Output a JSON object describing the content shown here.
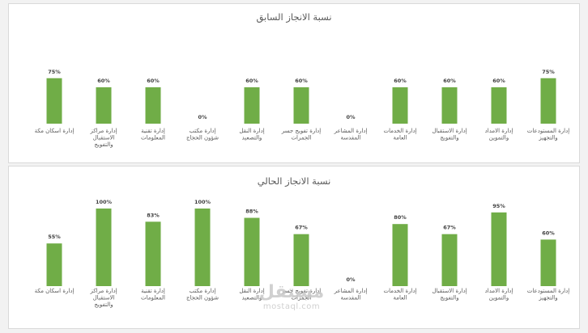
{
  "chart_data": [
    {
      "type": "bar",
      "title": "نسبة الانجاز السابق",
      "categories": [
        [
          "إدارة المستودعات",
          "والتجهيز"
        ],
        [
          "إدارة الامداد",
          "والتموين"
        ],
        [
          "إدارة الاستقبال",
          "والتفويج"
        ],
        [
          "إدارة الخدمات",
          "العامة"
        ],
        [
          "إدارة المشاعر",
          "المقدسة"
        ],
        [
          "إدارة تفويج جسر",
          "الجمرات"
        ],
        [
          "إدارة النقل",
          "والتصعيد"
        ],
        [
          "إدارة مكتب",
          "شؤون الحجاج"
        ],
        [
          "إدارة تقنية",
          "المعلومات"
        ],
        [
          "إدارة مراكز",
          "الاستقبال",
          "والتفويج"
        ],
        [
          "إدارة اسكان مكة"
        ]
      ],
      "values": [
        75,
        60,
        60,
        60,
        0,
        60,
        60,
        0,
        60,
        60,
        75
      ],
      "value_labels": [
        "75%",
        "60%",
        "60%",
        "60%",
        "0%",
        "60%",
        "60%",
        "0%",
        "60%",
        "60%",
        "75%"
      ],
      "ylim": [
        0,
        100
      ],
      "grid": false,
      "color": "#70ad47"
    },
    {
      "type": "bar",
      "title": "نسبة الانجاز الحالي",
      "categories": [
        [
          "إدارة المستودعات",
          "والتجهيز"
        ],
        [
          "إدارة الامداد",
          "والتموين"
        ],
        [
          "إدارة الاستقبال",
          "والتفويج"
        ],
        [
          "إدارة الخدمات",
          "العامة"
        ],
        [
          "إدارة المشاعر",
          "المقدسة"
        ],
        [
          "إدارة تفويج جسر",
          "الجمرات"
        ],
        [
          "إدارة النقل",
          "والتصعيد"
        ],
        [
          "إدارة مكتب",
          "شؤون الحجاج"
        ],
        [
          "إدارة تقنية",
          "المعلومات"
        ],
        [
          "إدارة مراكز",
          "الاستقبال",
          "والتفويج"
        ],
        [
          "إدارة اسكان مكة"
        ]
      ],
      "values": [
        60,
        95,
        67,
        80,
        0,
        67,
        88,
        100,
        83,
        100,
        55
      ],
      "value_labels": [
        "60%",
        "95%",
        "67%",
        "80%",
        "0%",
        "67%",
        "88%",
        "100%",
        "83%",
        "100%",
        "55%"
      ],
      "ylim": [
        0,
        100
      ],
      "grid": false,
      "color": "#70ad47"
    }
  ],
  "watermark": {
    "logo": "مستقل",
    "url": "mostaql.com"
  }
}
